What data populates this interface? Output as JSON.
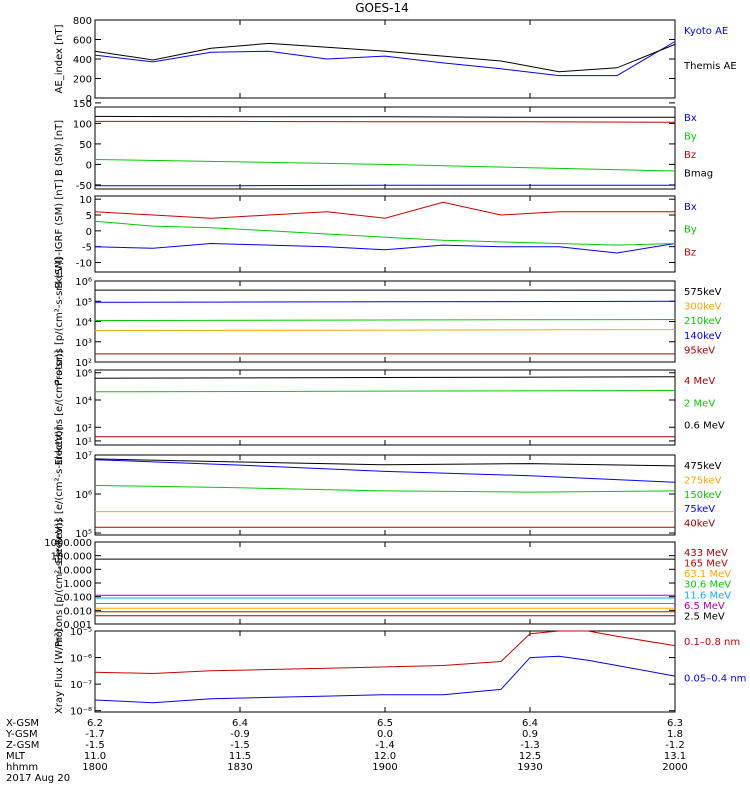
{
  "title": "GOES-14",
  "colors": {
    "black": "#000000",
    "blue": "#0000ff",
    "green": "#00cc00",
    "red": "#cc0000",
    "orange": "#ffa500",
    "cyan": "#00b4ff",
    "darkred": "#aa0000",
    "purple": "#aa00aa"
  },
  "time_axis": {
    "rows": [
      {
        "label": "X-GSM",
        "values": [
          "6.2",
          "6.4",
          "6.5",
          "6.4",
          "6.3"
        ]
      },
      {
        "label": "Y-GSM",
        "values": [
          "-1.7",
          "-0.9",
          "0.0",
          "0.9",
          "1.8"
        ]
      },
      {
        "label": "Z-GSM",
        "values": [
          "-1.5",
          "-1.5",
          "-1.4",
          "-1.3",
          "-1.2"
        ]
      },
      {
        "label": "MLT",
        "values": [
          "11.0",
          "11.5",
          "12.0",
          "12.5",
          "13.1"
        ]
      },
      {
        "label": "hhmm",
        "values": [
          "1800",
          "1830",
          "1900",
          "1930",
          "2000"
        ]
      }
    ],
    "date": "2017 Aug 20"
  },
  "chart_data": [
    {
      "type": "line",
      "ylabel": "AE_index [nT]",
      "ylim": [
        0,
        800
      ],
      "log": false,
      "ticks": [
        "800",
        "600",
        "400",
        "200",
        "0"
      ],
      "tick_values": [
        800,
        600,
        400,
        200,
        0
      ],
      "x": [
        0,
        0.1,
        0.2,
        0.3,
        0.4,
        0.5,
        0.6,
        0.7,
        0.8,
        0.9,
        1.0
      ],
      "series": [
        {
          "name": "Kyoto AE",
          "color": "blue",
          "values": [
            440,
            370,
            470,
            480,
            400,
            430,
            360,
            300,
            230,
            230,
            580
          ]
        },
        {
          "name": "Themis AE",
          "color": "black",
          "values": [
            480,
            390,
            510,
            560,
            520,
            480,
            430,
            380,
            270,
            310,
            550
          ]
        }
      ]
    },
    {
      "type": "line",
      "ylabel": "B (SM) [nT]",
      "ylim": [
        -60,
        140
      ],
      "log": false,
      "ticks": [
        "150",
        "100",
        "50",
        "0",
        "-50"
      ],
      "tick_values": [
        150,
        100,
        50,
        0,
        -50
      ],
      "x": [
        0,
        0.25,
        0.5,
        0.75,
        1.0
      ],
      "series": [
        {
          "name": "Bx",
          "color": "blue",
          "values": [
            -52,
            -52,
            -51,
            -51,
            -51
          ]
        },
        {
          "name": "By",
          "color": "green",
          "values": [
            12,
            6,
            0,
            -8,
            -16
          ]
        },
        {
          "name": "Bz",
          "color": "red",
          "values": [
            105,
            105,
            104,
            104,
            103
          ]
        },
        {
          "name": "Bmag",
          "color": "black",
          "values": [
            117,
            116,
            116,
            115,
            115
          ]
        }
      ]
    },
    {
      "type": "line",
      "ylabel": "B (SM)-IGRF (SM) [nT]",
      "ylim": [
        -13,
        11
      ],
      "log": false,
      "ticks": [
        "10",
        "5",
        "0",
        "-5",
        "-10"
      ],
      "tick_values": [
        10,
        5,
        0,
        -5,
        -10
      ],
      "x": [
        0,
        0.1,
        0.2,
        0.3,
        0.4,
        0.5,
        0.6,
        0.7,
        0.8,
        0.9,
        1.0
      ],
      "series": [
        {
          "name": "Bx",
          "color": "blue",
          "values": [
            -5,
            -5.5,
            -4,
            -4.5,
            -5,
            -6,
            -4.5,
            -5,
            -5,
            -7,
            -4
          ]
        },
        {
          "name": "By",
          "color": "green",
          "values": [
            3,
            1.5,
            1,
            0,
            -1,
            -2,
            -3,
            -3.5,
            -4,
            -4.5,
            -4
          ]
        },
        {
          "name": "Bz",
          "color": "red",
          "values": [
            6,
            5,
            4,
            5,
            6,
            4,
            9,
            5,
            6,
            6,
            6
          ]
        }
      ]
    },
    {
      "type": "line",
      "ylabel": "Protons [p/(cm²-s-sr-keV)]",
      "ylim": [
        2,
        6
      ],
      "log": true,
      "ticks": [
        "10⁶",
        "10⁵",
        "10⁴",
        "10³",
        "10²"
      ],
      "tick_values": [
        6,
        5,
        4,
        3,
        2
      ],
      "x": [
        0,
        1.0
      ],
      "series": [
        {
          "name": "575keV",
          "color": "black",
          "values": [
            5.55,
            5.55
          ]
        },
        {
          "name": "300keV",
          "color": "orange",
          "values": [
            3.55,
            3.6
          ]
        },
        {
          "name": "210keV",
          "color": "green",
          "values": [
            4.05,
            4.1
          ]
        },
        {
          "name": "140keV",
          "color": "blue",
          "values": [
            4.95,
            5.0
          ]
        },
        {
          "name": "95keV",
          "color": "darkred",
          "values": [
            2.4,
            2.4
          ]
        }
      ]
    },
    {
      "type": "line",
      "ylabel": "Electrons [e/(cm²-s-sr)]",
      "ylim": [
        0.7,
        6.2
      ],
      "log": true,
      "ticks": [
        "10⁶",
        "10⁴",
        "10²",
        "10¹"
      ],
      "tick_values": [
        6,
        4,
        2,
        1
      ],
      "x": [
        0,
        1.0
      ],
      "series": [
        {
          "name": "4 MeV",
          "color": "darkred",
          "values": [
            1.3,
            1.3
          ]
        },
        {
          "name": "2 MeV",
          "color": "green",
          "values": [
            4.6,
            4.7
          ]
        },
        {
          "name": "0.6 MeV",
          "color": "black",
          "values": [
            5.6,
            5.7
          ]
        }
      ]
    },
    {
      "type": "line",
      "ylabel": "Electrons [e/(cm²-s-sr-keV)]",
      "ylim": [
        4.95,
        7.0
      ],
      "log": true,
      "ticks": [
        "10⁷",
        "10⁶",
        "10⁵"
      ],
      "tick_values": [
        7,
        6,
        5
      ],
      "x": [
        0,
        0.25,
        0.5,
        0.75,
        1.0
      ],
      "series": [
        {
          "name": "475keV",
          "color": "black",
          "values": [
            6.9,
            6.82,
            6.75,
            6.78,
            6.72
          ]
        },
        {
          "name": "275keV",
          "color": "orange",
          "values": [
            5.55,
            5.55,
            5.55,
            5.55,
            5.55
          ]
        },
        {
          "name": "150keV",
          "color": "green",
          "values": [
            6.22,
            6.16,
            6.08,
            6.05,
            6.08
          ]
        },
        {
          "name": "75keV",
          "color": "blue",
          "values": [
            6.88,
            6.74,
            6.58,
            6.47,
            6.3
          ]
        },
        {
          "name": "40keV",
          "color": "darkred",
          "values": [
            5.15,
            5.15,
            5.15,
            5.15,
            5.15
          ]
        }
      ]
    },
    {
      "type": "line",
      "ylabel": "Protons [p/(cm²-s-sr-keV)]",
      "ylim": [
        -3.0,
        3.0
      ],
      "log": true,
      "ticks": [
        "1000.000",
        "100.000",
        "10.000",
        "1.000",
        "0.100",
        "0.010",
        "0.001"
      ],
      "tick_values": [
        3,
        2,
        1,
        0,
        -1,
        -2,
        -3
      ],
      "x": [
        0,
        1.0
      ],
      "series": [
        {
          "name": "433 MeV",
          "color": "darkred",
          "values": [
            -2.4,
            -2.4
          ]
        },
        {
          "name": "165 MeV",
          "color": "red",
          "values": [
            -2.1,
            -2.1
          ]
        },
        {
          "name": "63.1 MeV",
          "color": "orange",
          "values": [
            -1.85,
            -1.85
          ]
        },
        {
          "name": "30.6 MeV",
          "color": "green",
          "values": [
            -1.5,
            -1.5
          ]
        },
        {
          "name": "11.6 MeV",
          "color": "cyan",
          "values": [
            -1.1,
            -1.1
          ]
        },
        {
          "name": "6.5 MeV",
          "color": "purple",
          "values": [
            -0.9,
            -0.9
          ]
        },
        {
          "name": "2.5 MeV",
          "color": "black",
          "values": [
            1.75,
            1.75
          ]
        }
      ]
    },
    {
      "type": "line",
      "ylabel": "Xray Flux [W/m²]",
      "ylim": [
        -8.05,
        -5.0
      ],
      "log": true,
      "ticks": [
        "10⁻⁵",
        "10⁻⁶",
        "10⁻⁷",
        "10⁻⁸"
      ],
      "tick_values": [
        -5,
        -6,
        -7,
        -8
      ],
      "x": [
        0,
        0.1,
        0.2,
        0.3,
        0.4,
        0.5,
        0.6,
        0.7,
        0.75,
        0.8,
        0.85,
        0.9,
        1.0
      ],
      "series": [
        {
          "name": "0.1–0.8 nm",
          "color": "red",
          "values": [
            -6.55,
            -6.6,
            -6.5,
            -6.45,
            -6.4,
            -6.35,
            -6.3,
            -6.15,
            -5.1,
            -5.0,
            -5.0,
            -5.2,
            -5.55
          ]
        },
        {
          "name": "0.05–0.4 nm",
          "color": "blue",
          "values": [
            -7.6,
            -7.7,
            -7.55,
            -7.5,
            -7.45,
            -7.4,
            -7.4,
            -7.2,
            -6.0,
            -5.95,
            -6.1,
            -6.3,
            -6.7
          ]
        }
      ]
    }
  ]
}
